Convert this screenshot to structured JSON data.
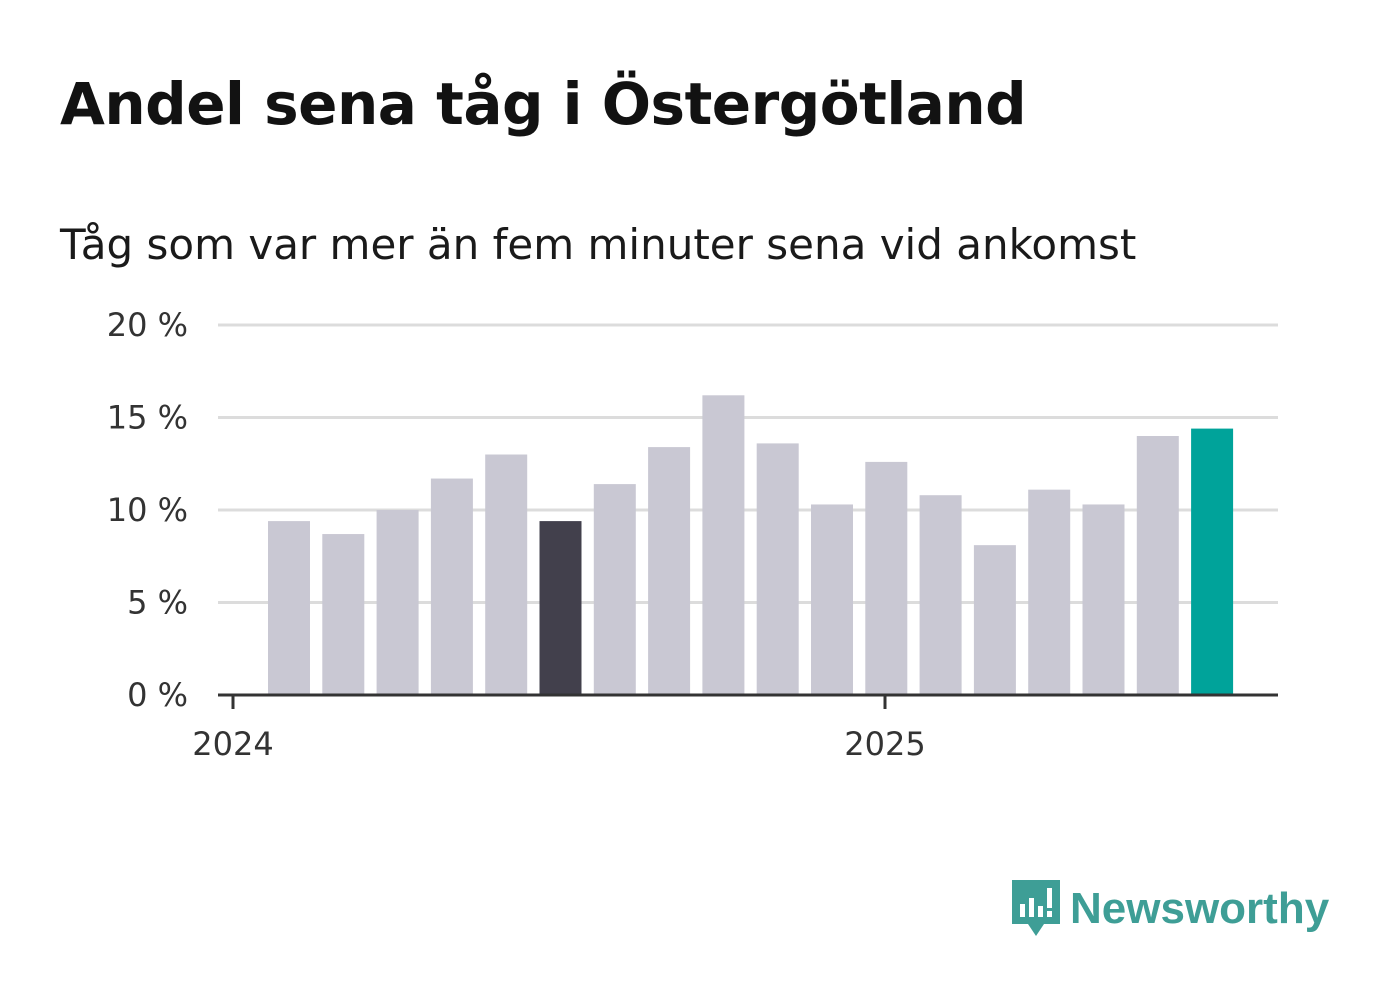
{
  "title": "Andel sena tåg i Östergötland",
  "subtitle": "Tåg som var mer än fem minuter sena vid ankomst",
  "brand": {
    "name": "Newsworthy",
    "color": "#3e9e96"
  },
  "colors": {
    "bar": "#c9c8d3",
    "highlight": "#42404c",
    "latest": "#00a39a",
    "grid": "#dcdcdc",
    "axis": "#333333"
  },
  "chart_data": {
    "type": "bar",
    "title": "Andel sena tåg i Östergötland",
    "subtitle": "Tåg som var mer än fem minuter sena vid ankomst",
    "xlabel": "",
    "ylabel": "",
    "ylim": [
      0,
      20
    ],
    "yticks": [
      0,
      5,
      10,
      15,
      20
    ],
    "ytick_labels": [
      "0 %",
      "5 %",
      "10 %",
      "15 %",
      "20 %"
    ],
    "x_tick_labels": [
      "2024",
      "2025"
    ],
    "grid": true,
    "values": [
      9.4,
      8.7,
      10.0,
      11.7,
      13.0,
      9.4,
      11.4,
      13.4,
      16.2,
      13.6,
      10.3,
      12.6,
      10.8,
      8.1,
      11.1,
      10.3,
      14.0,
      14.4
    ],
    "highlight_index": 5,
    "latest_index": 17
  }
}
